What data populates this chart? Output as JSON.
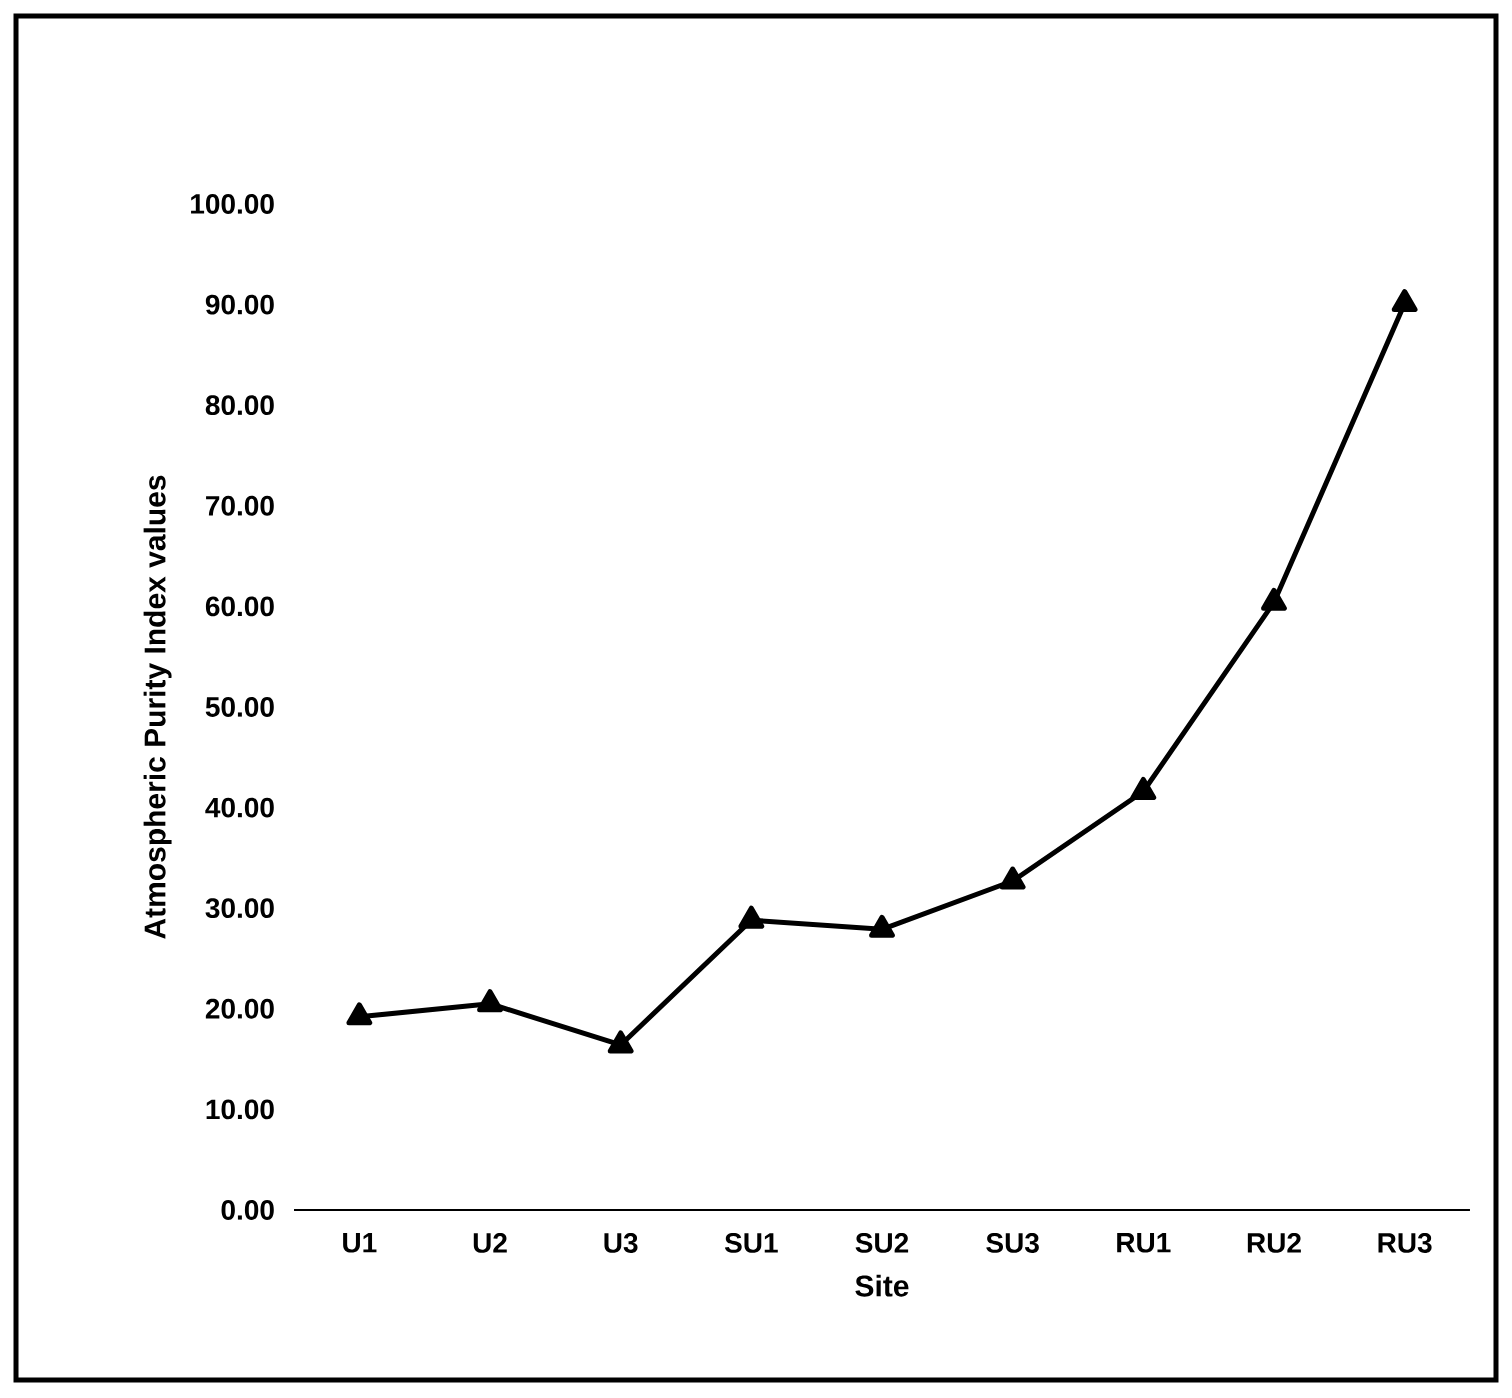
{
  "chart_data": {
    "type": "line",
    "xlabel": "Site",
    "ylabel": "Atmospheric Purity Index values",
    "categories": [
      "U1",
      "U2",
      "U3",
      "SU1",
      "SU2",
      "SU3",
      "RU1",
      "RU2",
      "RU3"
    ],
    "values": [
      19.2,
      20.5,
      16.4,
      28.8,
      27.9,
      32.7,
      41.6,
      60.4,
      90.1
    ],
    "color": "#000000",
    "marker": "triangle",
    "line_style": "solid",
    "ylim": [
      0,
      100
    ],
    "yticks": [
      {
        "value": 0,
        "label": "0.00"
      },
      {
        "value": 10,
        "label": "10.00"
      },
      {
        "value": 20,
        "label": "20.00"
      },
      {
        "value": 30,
        "label": "30.00"
      },
      {
        "value": 40,
        "label": "40.00"
      },
      {
        "value": 50,
        "label": "50.00"
      },
      {
        "value": 60,
        "label": "60.00"
      },
      {
        "value": 70,
        "label": "70.00"
      },
      {
        "value": 80,
        "label": "80.00"
      },
      {
        "value": 90,
        "label": "90.00"
      },
      {
        "value": 100,
        "label": "100.00"
      }
    ]
  }
}
